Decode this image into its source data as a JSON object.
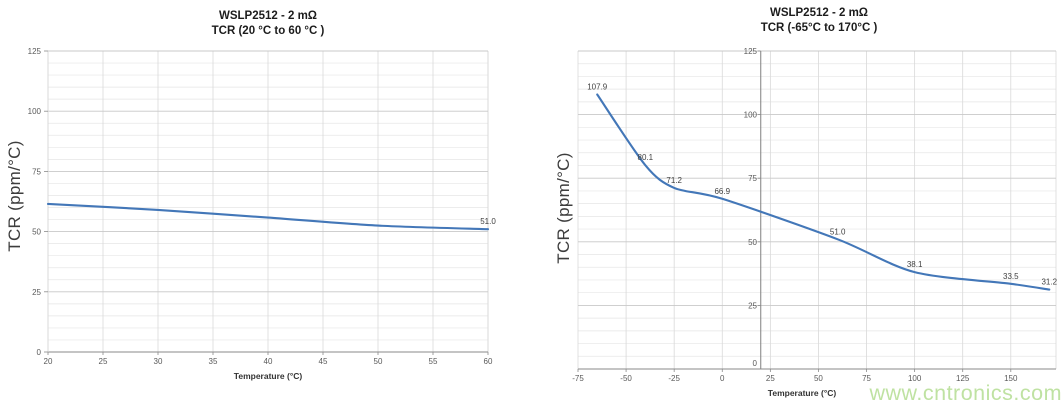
{
  "page": {
    "watermark": "www.cntronics.com",
    "watermark_color": "#bce19e",
    "background": "#ffffff"
  },
  "chart_data": [
    {
      "type": "line",
      "title": "WSLP2512 - 2 mΩ",
      "subtitle": "TCR (20 °C to 60 °C )",
      "xlabel": "Temperature (°C)",
      "ylabel": "TCR (ppm/°C)",
      "x": [
        20,
        30,
        40,
        50,
        60
      ],
      "y": [
        61.5,
        59.0,
        55.8,
        52.5,
        51.0
      ],
      "point_labels": [
        null,
        null,
        null,
        null,
        "51.0"
      ],
      "x_ticks": [
        20,
        25,
        30,
        35,
        40,
        45,
        50,
        55,
        60
      ],
      "y_ticks": [
        0,
        25,
        50,
        75,
        100,
        125
      ],
      "y_minor_step": 5,
      "xlim": [
        20,
        60
      ],
      "ylim": [
        0,
        125
      ],
      "grid": true,
      "legend": "none",
      "line_color": "#4377b8"
    },
    {
      "type": "line",
      "title": "WSLP2512 - 2 mΩ",
      "subtitle": "TCR (-65°C to 170°C )",
      "xlabel": "Temperature (°C)",
      "ylabel": "TCR (ppm/°C)",
      "x": [
        -65,
        -40,
        -25,
        0,
        60,
        100,
        150,
        170
      ],
      "y": [
        107.9,
        80.1,
        71.2,
        66.9,
        51.0,
        38.1,
        33.5,
        31.2
      ],
      "point_labels": [
        "107.9",
        "80.1",
        "71.2",
        "66.9",
        "51.0",
        "38.1",
        "33.5",
        "31.2"
      ],
      "x_ticks": [
        -75,
        -50,
        -25,
        0,
        25,
        50,
        75,
        100,
        125,
        150
      ],
      "y_ticks": [
        0,
        25,
        50,
        75,
        100,
        125
      ],
      "y_minor_step": 5,
      "xlim": [
        -75,
        173.5
      ],
      "ylim": [
        0,
        125
      ],
      "y_axis_cross_x": 20,
      "grid": true,
      "legend": "none",
      "line_color": "#4377b8"
    }
  ]
}
